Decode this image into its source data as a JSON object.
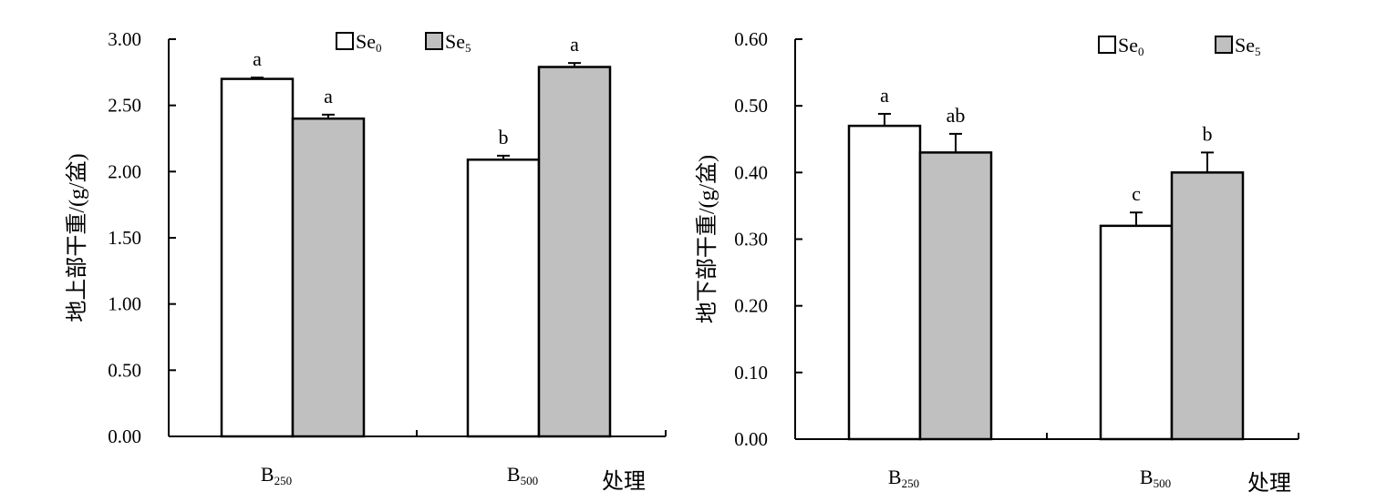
{
  "chart_data": [
    {
      "type": "bar",
      "categories": [
        "B250",
        "B500"
      ],
      "category_labels": [
        {
          "base": "B",
          "sub": "250"
        },
        {
          "base": "B",
          "sub": "500"
        }
      ],
      "series": [
        {
          "name": "Se0",
          "legend": {
            "base": "Se",
            "sub": "0"
          },
          "color": "#ffffff",
          "values": [
            2.7,
            2.09
          ],
          "errors": [
            0.01,
            0.03
          ],
          "letters": [
            "a",
            "b"
          ]
        },
        {
          "name": "Se5",
          "legend": {
            "base": "Se",
            "sub": "5"
          },
          "color": "#c0c0c0",
          "values": [
            2.4,
            2.79
          ],
          "errors": [
            0.03,
            0.03
          ],
          "letters": [
            "a",
            "a"
          ]
        }
      ],
      "ylabel": "地上部干重/(g/盆)",
      "xlabel": "处理",
      "ylim": [
        0,
        3.0
      ],
      "yticks": [
        "0.00",
        "0.50",
        "1.00",
        "1.50",
        "2.00",
        "2.50",
        "3.00"
      ],
      "grid": false,
      "legend_position": "top"
    },
    {
      "type": "bar",
      "categories": [
        "B250",
        "B500"
      ],
      "category_labels": [
        {
          "base": "B",
          "sub": "250"
        },
        {
          "base": "B",
          "sub": "500"
        }
      ],
      "series": [
        {
          "name": "Se0",
          "legend": {
            "base": "Se",
            "sub": "0"
          },
          "color": "#ffffff",
          "values": [
            0.47,
            0.32
          ],
          "errors": [
            0.018,
            0.02
          ],
          "letters": [
            "a",
            "c"
          ]
        },
        {
          "name": "Se5",
          "legend": {
            "base": "Se",
            "sub": "5"
          },
          "color": "#c0c0c0",
          "values": [
            0.43,
            0.4
          ],
          "errors": [
            0.028,
            0.03
          ],
          "letters": [
            "ab",
            "b"
          ]
        }
      ],
      "ylabel": "地下部干重/(g/盆)",
      "xlabel": "处理",
      "ylim": [
        0,
        0.6
      ],
      "yticks": [
        "0.00",
        "0.10",
        "0.20",
        "0.30",
        "0.40",
        "0.50",
        "0.60"
      ],
      "grid": false,
      "legend_position": "top-right"
    }
  ]
}
